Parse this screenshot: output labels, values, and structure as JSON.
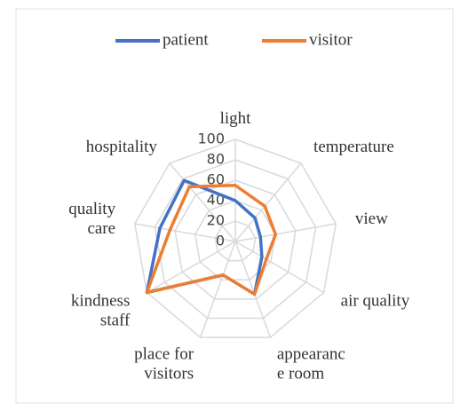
{
  "chart_data": {
    "type": "radar",
    "categories": [
      "light",
      "temperature",
      "view",
      "air quality",
      "appearance room",
      "place for visitors",
      "kindness staff",
      "quality care",
      "hospitality"
    ],
    "series": [
      {
        "name": "patient",
        "color": "#4472c4",
        "values": [
          40,
          30,
          25,
          30,
          55,
          35,
          100,
          75,
          78
        ]
      },
      {
        "name": "visitor",
        "color": "#ed7d31",
        "values": [
          55,
          45,
          40,
          35,
          55,
          35,
          100,
          65,
          70
        ]
      }
    ],
    "rlim": [
      0,
      100
    ],
    "rticks": [
      0,
      20,
      40,
      60,
      80,
      100
    ],
    "grid": true,
    "legend": "top"
  }
}
